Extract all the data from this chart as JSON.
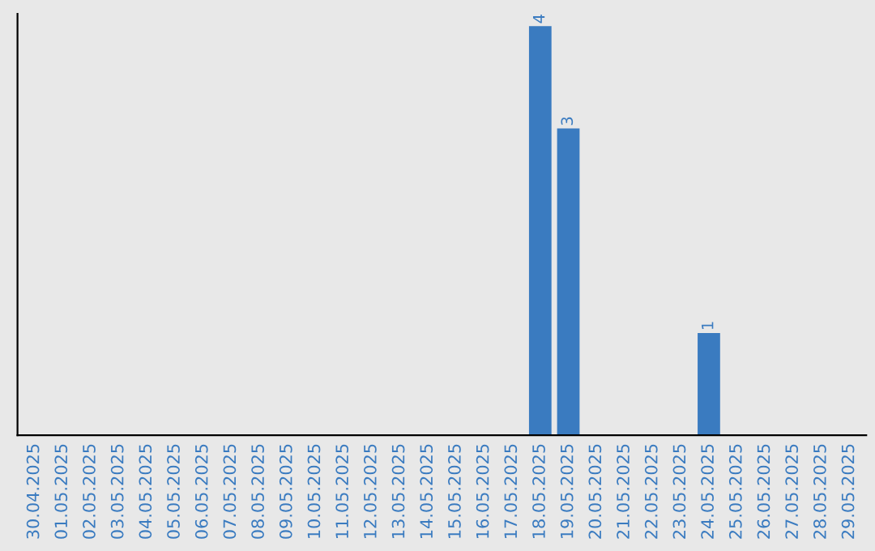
{
  "chart_data": {
    "type": "bar",
    "categories": [
      "30.04.2025",
      "01.05.2025",
      "02.05.2025",
      "03.05.2025",
      "04.05.2025",
      "05.05.2025",
      "06.05.2025",
      "07.05.2025",
      "08.05.2025",
      "09.05.2025",
      "10.05.2025",
      "11.05.2025",
      "12.05.2025",
      "13.05.2025",
      "14.05.2025",
      "15.05.2025",
      "16.05.2025",
      "17.05.2025",
      "18.05.2025",
      "19.05.2025",
      "20.05.2025",
      "21.05.2025",
      "22.05.2025",
      "23.05.2025",
      "24.05.2025",
      "25.05.2025",
      "26.05.2025",
      "27.05.2025",
      "28.05.2025",
      "29.05.2025"
    ],
    "values": [
      null,
      null,
      null,
      null,
      null,
      null,
      null,
      null,
      null,
      null,
      null,
      null,
      null,
      null,
      null,
      null,
      null,
      null,
      4,
      3,
      null,
      null,
      null,
      null,
      1,
      null,
      null,
      null,
      null,
      null
    ],
    "data_labels": true,
    "color": "#3a7bc0",
    "tick_labels": "x",
    "grid": false,
    "legend": false
  }
}
